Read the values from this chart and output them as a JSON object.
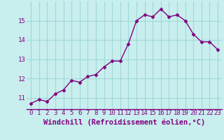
{
  "x": [
    0,
    1,
    2,
    3,
    4,
    5,
    6,
    7,
    8,
    9,
    10,
    11,
    12,
    13,
    14,
    15,
    16,
    17,
    18,
    19,
    20,
    21,
    22,
    23
  ],
  "y": [
    10.7,
    10.9,
    10.8,
    11.2,
    11.4,
    11.9,
    11.8,
    12.1,
    12.2,
    12.6,
    12.9,
    12.9,
    13.8,
    15.0,
    15.3,
    15.2,
    15.6,
    15.2,
    15.3,
    15.0,
    14.3,
    13.9,
    13.9,
    13.5
  ],
  "line_color": "#800080",
  "marker_color": "#800080",
  "bg_color": "#c8eeed",
  "grid_color": "#a0d8d8",
  "xlabel": "Windchill (Refroidissement éolien,°C)",
  "xlim": [
    -0.5,
    23.5
  ],
  "ylim": [
    10.4,
    16.0
  ],
  "yticks": [
    11,
    12,
    13,
    14,
    15
  ],
  "xtick_labels": [
    "0",
    "1",
    "2",
    "3",
    "4",
    "5",
    "6",
    "7",
    "8",
    "9",
    "10",
    "11",
    "12",
    "13",
    "14",
    "15",
    "16",
    "17",
    "18",
    "19",
    "20",
    "21",
    "22",
    "23"
  ],
  "xlabel_fontsize": 7.5,
  "tick_fontsize": 6.5
}
